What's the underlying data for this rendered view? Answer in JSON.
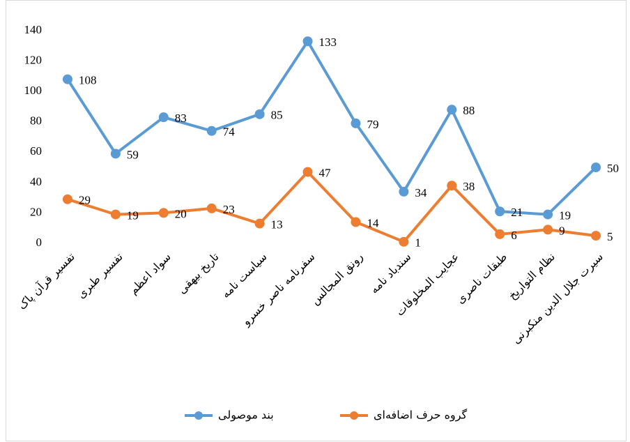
{
  "chart_data": {
    "type": "line",
    "categories": [
      "تفسیر قرآن پاک",
      "تفسیر طبری",
      "سواد اعظم",
      "تاریخ بیهقی",
      "سیاست نامه",
      "سفرنامه ناصر خسرو",
      "رونق المجالس",
      "سندباد نامه",
      "عجایب المخلوقات",
      "طبقات ناصری",
      "نظام التواریخ",
      "سیرت جلال الدین منکبرنی"
    ],
    "series": [
      {
        "name": "بند موصولی",
        "color": "#5b9bd5",
        "values": [
          108,
          59,
          83,
          74,
          85,
          133,
          79,
          34,
          88,
          21,
          19,
          50
        ]
      },
      {
        "name": "گروه حرف اضافه‌ای",
        "color": "#ed7d31",
        "values": [
          29,
          19,
          20,
          23,
          13,
          47,
          14,
          1,
          38,
          6,
          9,
          5
        ]
      }
    ],
    "ylim": [
      0,
      140
    ],
    "yticks": [
      0,
      20,
      40,
      60,
      80,
      100,
      120,
      140
    ],
    "grid": false,
    "data_labels": true,
    "legend": "bottom"
  }
}
